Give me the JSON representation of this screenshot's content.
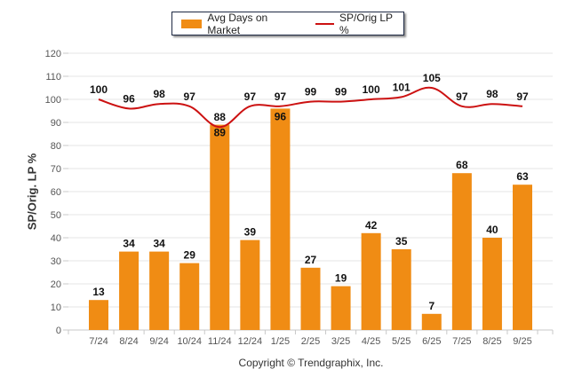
{
  "chart_data": {
    "type": "bar",
    "title": "",
    "xlabel": "",
    "ylabel": "SP/Orig. LP %",
    "ylim": [
      0,
      120
    ],
    "yticks": [
      0,
      10,
      20,
      30,
      40,
      50,
      60,
      70,
      80,
      90,
      100,
      110,
      120
    ],
    "grid": true,
    "legend_position": "top-center",
    "categories": [
      "7/24",
      "8/24",
      "9/24",
      "10/24",
      "11/24",
      "12/24",
      "1/25",
      "2/25",
      "3/25",
      "4/25",
      "5/25",
      "6/25",
      "7/25",
      "8/25",
      "9/25"
    ],
    "series": [
      {
        "name": "Avg Days on Market",
        "type": "bar",
        "color": "#f08c14",
        "values": [
          13,
          34,
          34,
          29,
          89,
          39,
          96,
          27,
          19,
          42,
          35,
          7,
          68,
          40,
          63
        ]
      },
      {
        "name": "SP/Orig LP %",
        "type": "line",
        "color": "#cc1111",
        "values": [
          100,
          96,
          98,
          97,
          88,
          97,
          97,
          99,
          99,
          100,
          101,
          105,
          97,
          98,
          97
        ]
      }
    ],
    "footer": "Copyright © Trendgraphix, Inc."
  }
}
